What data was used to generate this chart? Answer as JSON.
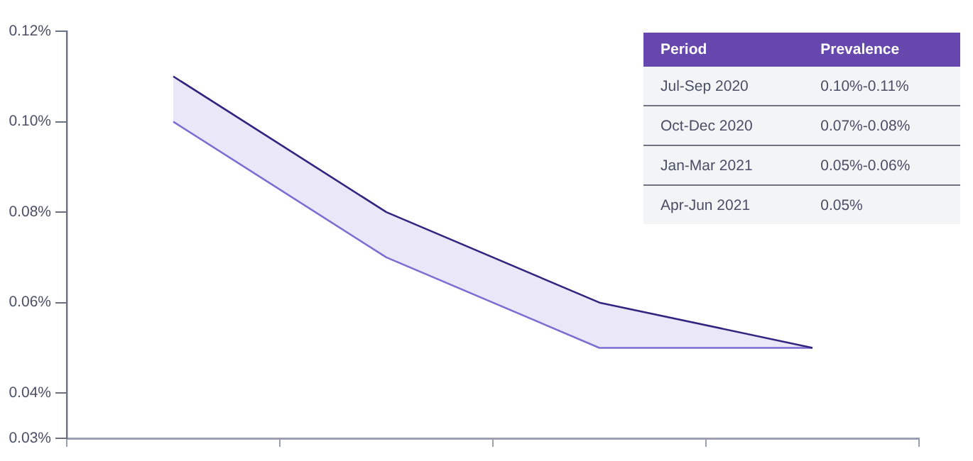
{
  "chart_data": {
    "type": "line",
    "categories": [
      null,
      null,
      null,
      null
    ],
    "series": [
      {
        "color": "#2e1f7a",
        "values": [
          0.11,
          0.08,
          0.06,
          0.05
        ]
      },
      {
        "color": "#7b6fd3",
        "values": [
          0.1,
          0.07,
          0.05,
          0.05
        ],
        "lower": [
          0.1,
          0.07,
          0.05,
          0.05
        ],
        "upper": [
          0.11,
          0.08,
          0.06,
          0.05
        ]
      }
    ],
    "ylim": [
      0.03,
      0.12
    ],
    "yticks": [
      {
        "value": 0.03,
        "label": "0.03%"
      },
      {
        "value": 0.04,
        "label": "0.04%"
      },
      {
        "value": 0.06,
        "label": "0.06%"
      },
      {
        "value": 0.08,
        "label": "0.08%"
      },
      {
        "value": 0.1,
        "label": "0.10%"
      },
      {
        "value": 0.12,
        "label": "0.12%"
      }
    ],
    "annotations": [
      "Period",
      "Prevalence",
      "Jul-Sep 2020",
      "0.10%-0.11%",
      "Oct-Dec 2020",
      "0.07%-0.08%",
      "Jan-Mar 2021",
      "0.05%-0.06%",
      "Apr-Jun 2021",
      "0.05%"
    ],
    "tick_labels": "y",
    "marker": "none",
    "legend": false,
    "grid": false
  }
}
